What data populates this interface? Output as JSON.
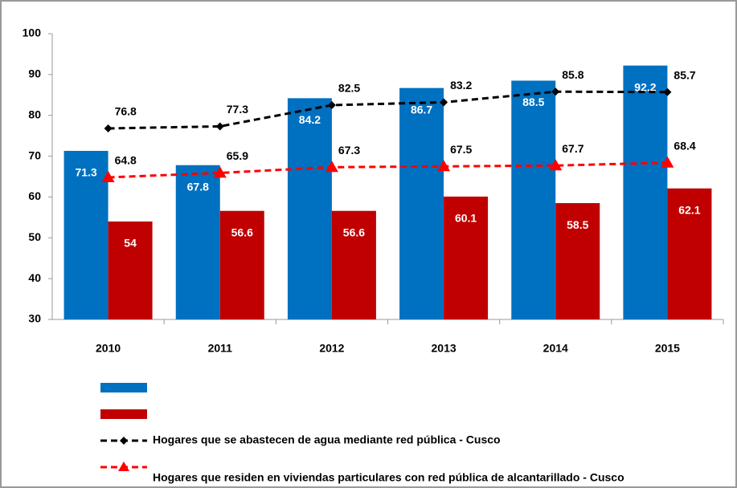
{
  "chart_data": {
    "type": "bar_line",
    "categories": [
      "2010",
      "2011",
      "2012",
      "2013",
      "2014",
      "2015"
    ],
    "series": [
      {
        "kind": "bar",
        "color": "#0070c0",
        "values": [
          71.3,
          67.8,
          84.2,
          86.7,
          88.5,
          92.2
        ]
      },
      {
        "kind": "bar",
        "color": "#c00000",
        "values": [
          54,
          56.6,
          56.6,
          60.1,
          58.5,
          62.1
        ]
      },
      {
        "kind": "line",
        "name": "Hogares que se abastecen de agua mediante red pública - Cusco",
        "color": "#000000",
        "marker": "diamond",
        "values": [
          76.8,
          77.3,
          82.5,
          83.2,
          85.8,
          85.7
        ]
      },
      {
        "kind": "line",
        "name": "Hogares que residen en viviendas particulares con red pública de alcantarillado - Cusco",
        "color": "#ff0000",
        "marker": "triangle",
        "values": [
          64.8,
          65.9,
          67.3,
          67.5,
          67.7,
          68.4
        ]
      }
    ],
    "ylim": [
      30,
      100
    ],
    "yticks": [
      30,
      40,
      50,
      60,
      70,
      80,
      90,
      100
    ],
    "grid": false,
    "legend": "bottom"
  }
}
